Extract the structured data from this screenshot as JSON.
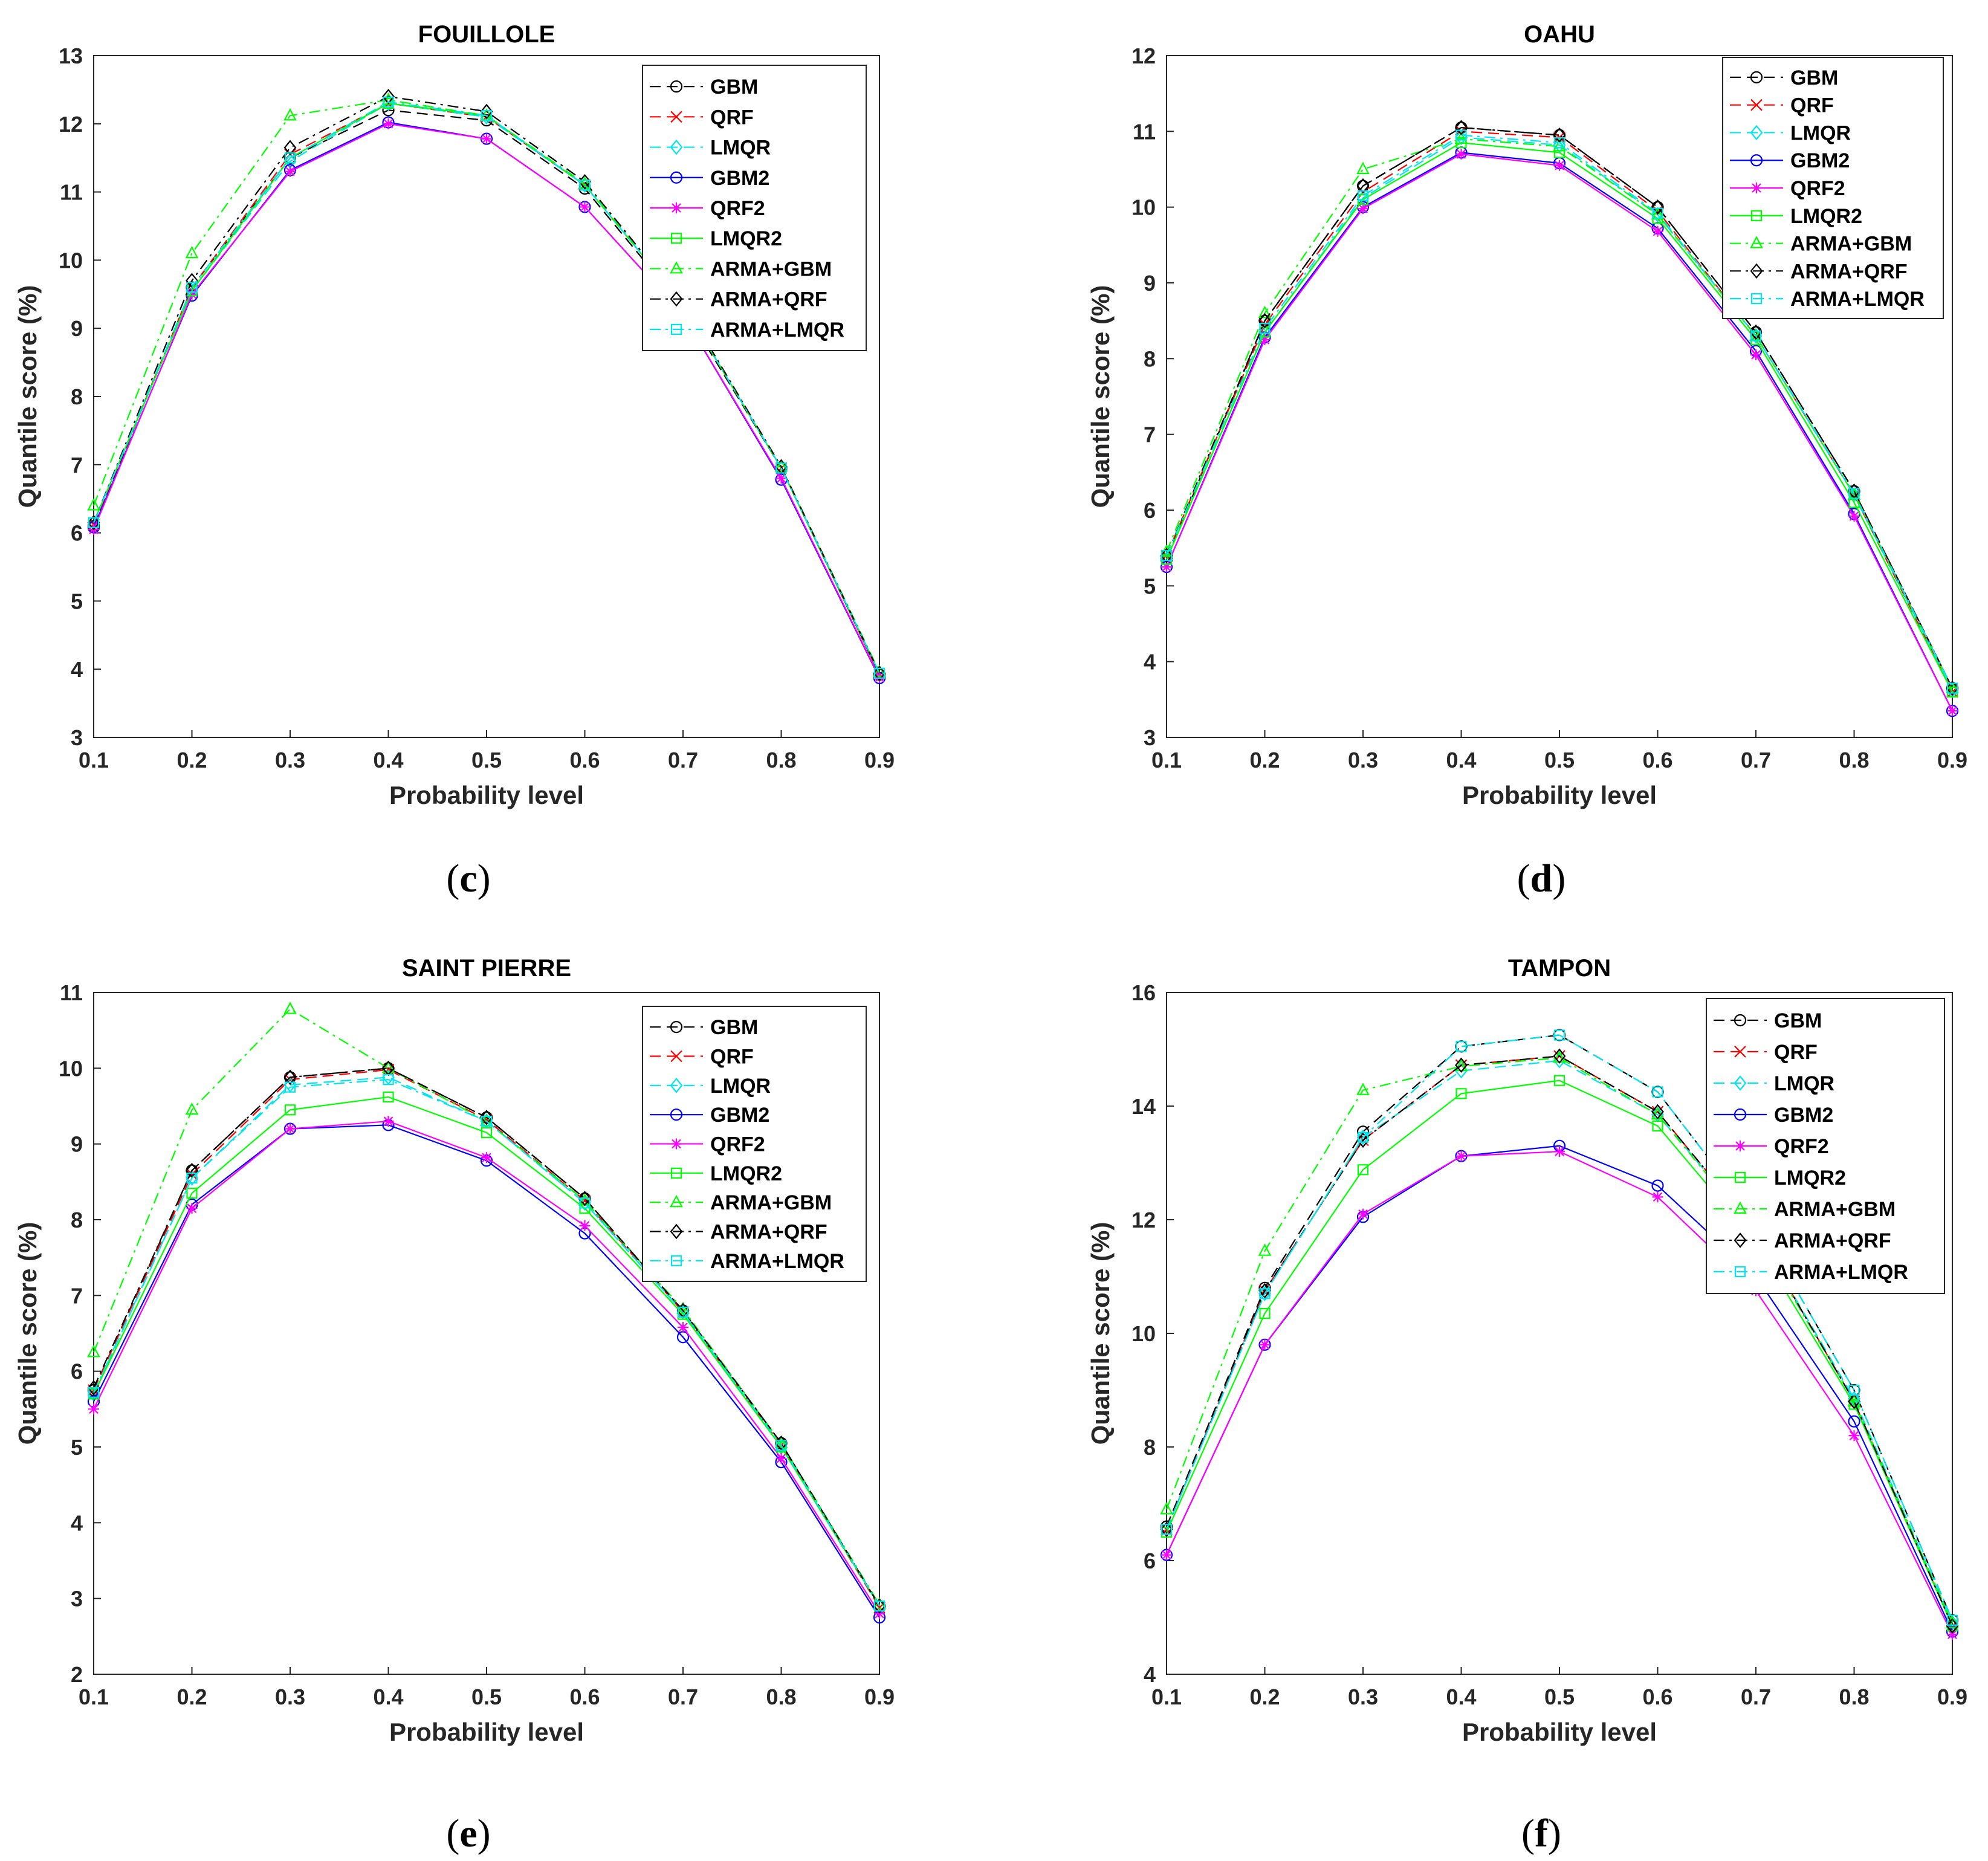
{
  "figure": {
    "panels": [
      "c",
      "d",
      "e",
      "f"
    ]
  },
  "series_styles": [
    {
      "name": "GBM",
      "color": "#000000",
      "dash": "dash",
      "marker": "circle"
    },
    {
      "name": "QRF",
      "color": "#ff0000",
      "dash": "dash",
      "marker": "x"
    },
    {
      "name": "LMQR",
      "color": "#00e5ee",
      "dash": "dash",
      "marker": "diamond"
    },
    {
      "name": "GBM2",
      "color": "#0000ff",
      "dash": "solid",
      "marker": "circle"
    },
    {
      "name": "QRF2",
      "color": "#ff00ff",
      "dash": "solid",
      "marker": "star"
    },
    {
      "name": "LMQR2",
      "color": "#00ff00",
      "dash": "solid",
      "marker": "square"
    },
    {
      "name": "ARMA+GBM",
      "color": "#00ff00",
      "dash": "dashdot",
      "marker": "triangle"
    },
    {
      "name": "ARMA+QRF",
      "color": "#000000",
      "dash": "dashdot",
      "marker": "diamond"
    },
    {
      "name": "ARMA+LMQR",
      "color": "#00e5ee",
      "dash": "dashdot",
      "marker": "square"
    }
  ],
  "chart_data": [
    {
      "type": "line",
      "panel_label": "c",
      "title": "FOUILLOLE",
      "xlabel": "Probability level",
      "ylabel": "Quantile score (%)",
      "x": [
        0.1,
        0.2,
        0.3,
        0.4,
        0.5,
        0.6,
        0.7,
        0.8,
        0.9
      ],
      "xticks": [
        "0.1",
        "0.2",
        "0.3",
        "0.4",
        "0.5",
        "0.6",
        "0.7",
        "0.8",
        "0.9"
      ],
      "xlim": [
        0.1,
        0.9
      ],
      "ylim": [
        3,
        13
      ],
      "yticks": [
        3,
        4,
        5,
        6,
        7,
        8,
        9,
        10,
        11,
        12,
        13
      ],
      "legend_position": "top-right",
      "series": [
        {
          "name": "GBM",
          "values": [
            6.1,
            9.6,
            11.5,
            12.2,
            12.05,
            11.05,
            9.3,
            6.95,
            3.92
          ]
        },
        {
          "name": "QRF",
          "values": [
            6.12,
            9.6,
            11.55,
            12.3,
            12.1,
            11.1,
            9.35,
            6.95,
            3.92
          ]
        },
        {
          "name": "LMQR",
          "values": [
            6.15,
            9.55,
            11.45,
            12.3,
            12.1,
            11.1,
            9.35,
            6.95,
            3.94
          ]
        },
        {
          "name": "GBM2",
          "values": [
            6.08,
            9.48,
            11.32,
            12.02,
            11.78,
            10.78,
            9.2,
            6.78,
            3.87
          ]
        },
        {
          "name": "QRF2",
          "values": [
            6.05,
            9.5,
            11.3,
            12.0,
            11.78,
            10.78,
            9.2,
            6.8,
            3.88
          ]
        },
        {
          "name": "LMQR2",
          "values": [
            6.15,
            9.55,
            11.5,
            12.3,
            12.12,
            11.1,
            9.35,
            6.95,
            3.94
          ]
        },
        {
          "name": "ARMA+GBM",
          "values": [
            6.4,
            10.1,
            12.12,
            12.35,
            12.12,
            11.12,
            9.38,
            6.97,
            3.96
          ]
        },
        {
          "name": "ARMA+QRF",
          "values": [
            6.15,
            9.7,
            11.65,
            12.4,
            12.18,
            11.15,
            9.38,
            6.97,
            3.94
          ]
        },
        {
          "name": "ARMA+LMQR",
          "values": [
            6.15,
            9.6,
            11.5,
            12.32,
            12.12,
            11.1,
            9.35,
            6.95,
            3.94
          ]
        }
      ]
    },
    {
      "type": "line",
      "panel_label": "d",
      "title": "OAHU",
      "xlabel": "Probability level",
      "ylabel": "Quantile score (%)",
      "x": [
        0.1,
        0.2,
        0.3,
        0.4,
        0.5,
        0.6,
        0.7,
        0.8,
        0.9
      ],
      "xticks": [
        "0.1",
        "0.2",
        "0.3",
        "0.4",
        "0.5",
        "0.6",
        "0.7",
        "0.8",
        "0.9"
      ],
      "xlim": [
        0.1,
        0.9
      ],
      "ylim": [
        3,
        12
      ],
      "yticks": [
        3,
        4,
        5,
        6,
        7,
        8,
        9,
        10,
        11,
        12
      ],
      "legend_position": "top-right",
      "series": [
        {
          "name": "GBM",
          "values": [
            5.35,
            8.5,
            10.28,
            11.05,
            10.95,
            10.0,
            8.35,
            6.25,
            3.65
          ]
        },
        {
          "name": "QRF",
          "values": [
            5.4,
            8.45,
            10.2,
            11.0,
            10.92,
            9.95,
            8.3,
            6.2,
            3.6
          ]
        },
        {
          "name": "LMQR",
          "values": [
            5.35,
            8.35,
            10.12,
            10.92,
            10.82,
            9.9,
            8.3,
            6.2,
            3.62
          ]
        },
        {
          "name": "GBM2",
          "values": [
            5.25,
            8.28,
            10.0,
            10.72,
            10.58,
            9.72,
            8.1,
            5.95,
            3.35
          ]
        },
        {
          "name": "QRF2",
          "values": [
            5.25,
            8.25,
            9.98,
            10.7,
            10.55,
            9.68,
            8.05,
            5.92,
            3.35
          ]
        },
        {
          "name": "LMQR2",
          "values": [
            5.35,
            8.35,
            10.1,
            10.85,
            10.72,
            9.85,
            8.25,
            6.1,
            3.6
          ]
        },
        {
          "name": "ARMA+GBM",
          "values": [
            5.45,
            8.6,
            10.5,
            10.9,
            10.8,
            9.9,
            8.3,
            6.2,
            3.65
          ]
        },
        {
          "name": "ARMA+QRF",
          "values": [
            5.4,
            8.5,
            10.28,
            11.05,
            10.95,
            10.0,
            8.35,
            6.25,
            3.65
          ]
        },
        {
          "name": "ARMA+LMQR",
          "values": [
            5.4,
            8.4,
            10.15,
            10.95,
            10.85,
            9.92,
            8.3,
            6.22,
            3.65
          ]
        }
      ]
    },
    {
      "type": "line",
      "panel_label": "e",
      "title": "SAINT PIERRE",
      "xlabel": "Probability level",
      "ylabel": "Quantile score (%)",
      "x": [
        0.1,
        0.2,
        0.3,
        0.4,
        0.5,
        0.6,
        0.7,
        0.8,
        0.9
      ],
      "xticks": [
        "0.1",
        "0.2",
        "0.3",
        "0.4",
        "0.5",
        "0.6",
        "0.7",
        "0.8",
        "0.9"
      ],
      "xlim": [
        0.1,
        0.9
      ],
      "ylim": [
        2,
        11
      ],
      "yticks": [
        2,
        3,
        4,
        5,
        6,
        7,
        8,
        9,
        10,
        11
      ],
      "legend_position": "top-right",
      "series": [
        {
          "name": "GBM",
          "values": [
            5.75,
            8.65,
            9.88,
            10.0,
            9.35,
            8.28,
            6.8,
            5.05,
            2.9
          ]
        },
        {
          "name": "QRF",
          "values": [
            5.75,
            8.6,
            9.85,
            9.98,
            9.32,
            8.25,
            6.78,
            5.02,
            2.88
          ]
        },
        {
          "name": "LMQR",
          "values": [
            5.7,
            8.55,
            9.78,
            9.88,
            9.3,
            8.22,
            6.78,
            5.0,
            2.9
          ]
        },
        {
          "name": "GBM2",
          "values": [
            5.6,
            8.2,
            9.2,
            9.25,
            8.78,
            7.82,
            6.45,
            4.8,
            2.75
          ]
        },
        {
          "name": "QRF2",
          "values": [
            5.5,
            8.15,
            9.2,
            9.3,
            8.82,
            7.92,
            6.58,
            4.85,
            2.8
          ]
        },
        {
          "name": "LMQR2",
          "values": [
            5.7,
            8.35,
            9.45,
            9.62,
            9.15,
            8.15,
            6.75,
            5.0,
            2.9
          ]
        },
        {
          "name": "ARMA+GBM",
          "values": [
            6.25,
            9.45,
            10.78,
            10.0,
            9.3,
            8.25,
            6.82,
            5.05,
            2.92
          ]
        },
        {
          "name": "ARMA+QRF",
          "values": [
            5.78,
            8.65,
            9.88,
            10.0,
            9.35,
            8.28,
            6.8,
            5.05,
            2.9
          ]
        },
        {
          "name": "ARMA+LMQR",
          "values": [
            5.72,
            8.55,
            9.75,
            9.85,
            9.3,
            8.22,
            6.78,
            5.02,
            2.9
          ]
        }
      ]
    },
    {
      "type": "line",
      "panel_label": "f",
      "title": "TAMPON",
      "xlabel": "Probability level",
      "ylabel": "Quantile score (%)",
      "x": [
        0.1,
        0.2,
        0.3,
        0.4,
        0.5,
        0.6,
        0.7,
        0.8,
        0.9
      ],
      "xticks": [
        "0.1",
        "0.2",
        "0.3",
        "0.4",
        "0.5",
        "0.6",
        "0.7",
        "0.8",
        "0.9"
      ],
      "xlim": [
        0.1,
        0.9
      ],
      "ylim": [
        4,
        16
      ],
      "yticks": [
        4,
        6,
        8,
        10,
        12,
        14,
        16
      ],
      "legend_position": "top-right",
      "series": [
        {
          "name": "GBM",
          "values": [
            6.6,
            10.8,
            13.55,
            15.05,
            15.25,
            14.25,
            12.0,
            9.0,
            4.95
          ]
        },
        {
          "name": "QRF",
          "values": [
            6.55,
            10.75,
            13.4,
            14.72,
            14.88,
            13.9,
            11.8,
            8.8,
            4.85
          ]
        },
        {
          "name": "LMQR",
          "values": [
            6.55,
            10.7,
            13.45,
            14.62,
            14.8,
            13.85,
            11.8,
            8.85,
            4.9
          ]
        },
        {
          "name": "GBM2",
          "values": [
            6.1,
            9.8,
            12.05,
            13.12,
            13.3,
            12.6,
            11.0,
            8.45,
            4.75
          ]
        },
        {
          "name": "QRF2",
          "values": [
            6.1,
            9.8,
            12.1,
            13.12,
            13.2,
            12.4,
            10.75,
            8.2,
            4.7
          ]
        },
        {
          "name": "LMQR2",
          "values": [
            6.5,
            10.35,
            12.88,
            14.22,
            14.45,
            13.65,
            11.6,
            8.75,
            4.85
          ]
        },
        {
          "name": "ARMA+GBM",
          "values": [
            6.9,
            11.45,
            14.28,
            14.7,
            14.85,
            13.85,
            11.75,
            8.8,
            4.9
          ]
        },
        {
          "name": "ARMA+QRF",
          "values": [
            6.55,
            10.75,
            13.4,
            14.72,
            14.88,
            13.9,
            11.8,
            8.8,
            4.85
          ]
        },
        {
          "name": "ARMA+LMQR",
          "values": [
            6.55,
            10.7,
            13.45,
            15.05,
            15.25,
            14.25,
            12.0,
            9.0,
            4.95
          ]
        }
      ]
    }
  ]
}
